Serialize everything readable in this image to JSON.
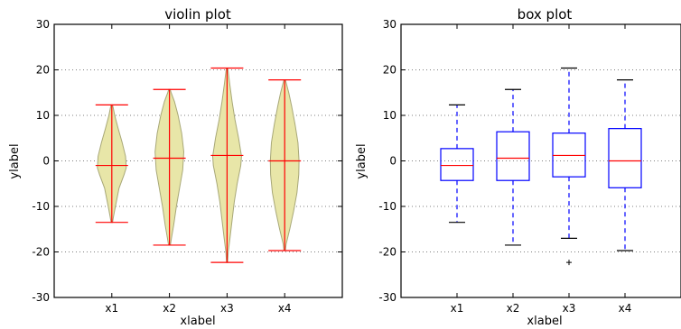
{
  "chart_data": [
    {
      "type": "violin",
      "title": "violin plot",
      "xlabel": "xlabel",
      "ylabel": "ylabel",
      "categories": [
        "x1",
        "x2",
        "x3",
        "x4"
      ],
      "ylim": [
        -30,
        30
      ],
      "yticks": [
        -30,
        -20,
        -10,
        0,
        10,
        20,
        30
      ],
      "grid": "horizontal dotted",
      "colors": {
        "body_fill": "#e8e6a8",
        "body_edge": "#a8a878",
        "stats": "#ff0000"
      },
      "series": [
        {
          "category": "x1",
          "min": -13.5,
          "max": 12.3,
          "median": -1.0,
          "density": [
            [
              -13.5,
              0.05
            ],
            [
              -12.2,
              0.12
            ],
            [
              -10,
              0.25
            ],
            [
              -6,
              0.5
            ],
            [
              -3,
              0.85
            ],
            [
              -1.5,
              1.0
            ],
            [
              1,
              0.95
            ],
            [
              4,
              0.72
            ],
            [
              7,
              0.45
            ],
            [
              10,
              0.2
            ],
            [
              11.6,
              0.1
            ],
            [
              12.3,
              0.05
            ]
          ]
        },
        {
          "category": "x2",
          "min": -18.5,
          "max": 15.7,
          "median": 0.6,
          "density": [
            [
              -18.5,
              0.06
            ],
            [
              -17,
              0.14
            ],
            [
              -14,
              0.3
            ],
            [
              -10,
              0.48
            ],
            [
              -6,
              0.7
            ],
            [
              -2,
              0.92
            ],
            [
              2,
              1.0
            ],
            [
              6,
              0.85
            ],
            [
              10,
              0.6
            ],
            [
              13,
              0.35
            ],
            [
              15,
              0.12
            ],
            [
              15.7,
              0.05
            ]
          ]
        },
        {
          "category": "x3",
          "min": -22.3,
          "max": 20.4,
          "median": 1.2,
          "density": [
            [
              -22.3,
              0.04
            ],
            [
              -20,
              0.08
            ],
            [
              -17,
              0.2
            ],
            [
              -13,
              0.35
            ],
            [
              -9,
              0.5
            ],
            [
              -5,
              0.7
            ],
            [
              -1,
              0.95
            ],
            [
              1,
              1.0
            ],
            [
              5,
              0.8
            ],
            [
              9,
              0.55
            ],
            [
              13,
              0.35
            ],
            [
              17,
              0.18
            ],
            [
              20,
              0.06
            ],
            [
              20.4,
              0.04
            ]
          ]
        },
        {
          "category": "x4",
          "min": -19.7,
          "max": 17.8,
          "median": 0.0,
          "density": [
            [
              -19.7,
              0.05
            ],
            [
              -18.3,
              0.1
            ],
            [
              -15,
              0.35
            ],
            [
              -11,
              0.62
            ],
            [
              -7,
              0.85
            ],
            [
              -3,
              0.98
            ],
            [
              0,
              1.0
            ],
            [
              4,
              0.92
            ],
            [
              8,
              0.72
            ],
            [
              12,
              0.48
            ],
            [
              15,
              0.28
            ],
            [
              17.2,
              0.1
            ],
            [
              17.8,
              0.05
            ]
          ]
        }
      ]
    },
    {
      "type": "box",
      "title": "box plot",
      "xlabel": "xlabel",
      "ylabel": "ylabel",
      "categories": [
        "x1",
        "x2",
        "x3",
        "x4"
      ],
      "ylim": [
        -30,
        30
      ],
      "yticks": [
        -30,
        -20,
        -10,
        0,
        10,
        20,
        30
      ],
      "grid": "horizontal dotted",
      "colors": {
        "box": "#0000ff",
        "median": "#ff0000",
        "caps": "#000000",
        "flier": "#000000"
      },
      "series": [
        {
          "category": "x1",
          "whisker_low": -13.5,
          "q1": -4.3,
          "median": -1.0,
          "q3": 2.7,
          "whisker_high": 12.3,
          "fliers": []
        },
        {
          "category": "x2",
          "whisker_low": -18.5,
          "q1": -4.3,
          "median": 0.6,
          "q3": 6.4,
          "whisker_high": 15.7,
          "fliers": []
        },
        {
          "category": "x3",
          "whisker_low": -17.0,
          "q1": -3.5,
          "median": 1.2,
          "q3": 6.1,
          "whisker_high": 20.4,
          "fliers": [
            -22.3
          ]
        },
        {
          "category": "x4",
          "whisker_low": -19.7,
          "q1": -5.9,
          "median": 0.0,
          "q3": 7.1,
          "whisker_high": 17.8,
          "fliers": []
        }
      ]
    }
  ]
}
